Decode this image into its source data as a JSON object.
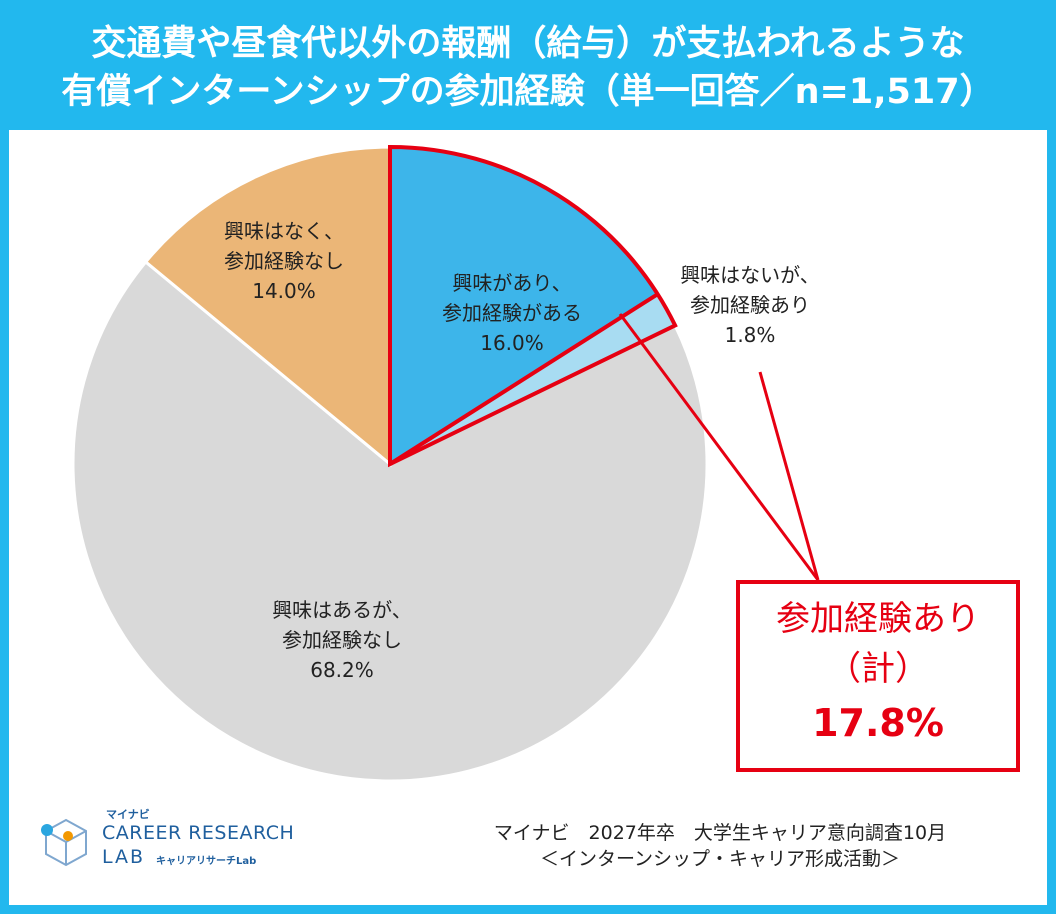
{
  "title": {
    "line1": "交通費や昼食代以外の報酬（給与）が支払われるような",
    "line2": "有償インターンシップの参加経験（単一回答／n=1,517）"
  },
  "colors": {
    "header": "#22b8ee",
    "callout": "#e60012"
  },
  "chart_data": {
    "type": "pie",
    "title": "交通費や昼食代以外の報酬（給与）が支払われるような有償インターンシップの参加経験（単一回答／n=1,517）",
    "start": "12 o'clock",
    "direction": "clockwise",
    "slices": [
      {
        "label_lines": [
          "興味があり、",
          "参加経験がある"
        ],
        "value": 16.0,
        "value_label": "16.0%",
        "color": "#3db5ea",
        "highlight": true
      },
      {
        "label_lines": [
          "興味はないが、",
          "参加経験あり"
        ],
        "value": 1.8,
        "value_label": "1.8%",
        "color": "#a8dcf2",
        "highlight": true
      },
      {
        "label_lines": [
          "興味はあるが、",
          "参加経験なし"
        ],
        "value": 68.2,
        "value_label": "68.2%",
        "color": "#d9d9d9",
        "highlight": false
      },
      {
        "label_lines": [
          "興味はなく、",
          "参加経験なし"
        ],
        "value": 14.0,
        "value_label": "14.0%",
        "color": "#ebb677",
        "highlight": false
      }
    ],
    "annotation": {
      "lines": [
        "参加経験あり",
        "（計）"
      ],
      "value_label": "17.8%",
      "total": 17.8
    }
  },
  "source": {
    "line1": "マイナビ　2027年卒　大学生キャリア意向調査10月",
    "line2": "＜インターンシップ・キャリア形成活動＞"
  },
  "logo": {
    "brand": "マイナビ",
    "line1": "CAREER RESEARCH",
    "line2": "LAB",
    "sub": "キャリアリサーチLab"
  }
}
